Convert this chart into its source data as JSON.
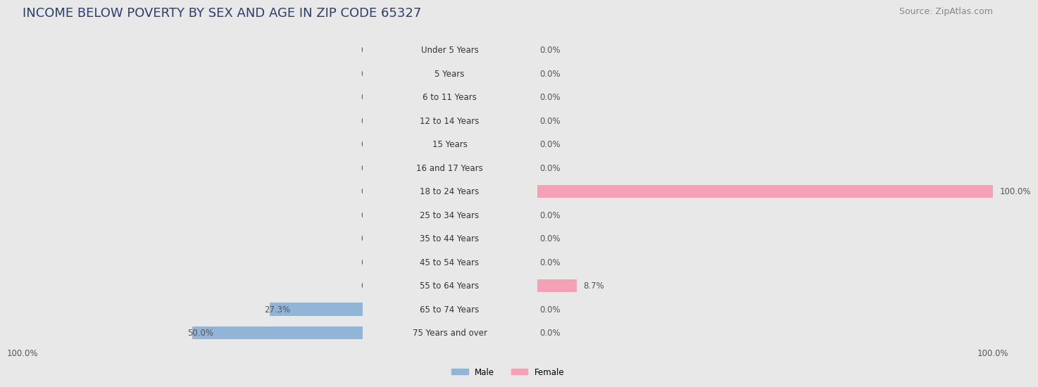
{
  "title": "INCOME BELOW POVERTY BY SEX AND AGE IN ZIP CODE 65327",
  "source": "Source: ZipAtlas.com",
  "categories": [
    "Under 5 Years",
    "5 Years",
    "6 to 11 Years",
    "12 to 14 Years",
    "15 Years",
    "16 and 17 Years",
    "18 to 24 Years",
    "25 to 34 Years",
    "35 to 44 Years",
    "45 to 54 Years",
    "55 to 64 Years",
    "65 to 74 Years",
    "75 Years and over"
  ],
  "male_values": [
    0.0,
    0.0,
    0.0,
    0.0,
    0.0,
    0.0,
    0.0,
    0.0,
    0.0,
    0.0,
    0.0,
    27.3,
    50.0
  ],
  "female_values": [
    0.0,
    0.0,
    0.0,
    0.0,
    0.0,
    0.0,
    100.0,
    0.0,
    0.0,
    0.0,
    8.7,
    0.0,
    0.0
  ],
  "male_color": "#92b4d7",
  "female_color": "#f4a0b5",
  "male_label": "Male",
  "female_label": "Female",
  "max_val": 100.0,
  "background_color": "#e8e8e8",
  "row_even_color": "#f5f5f5",
  "row_odd_color": "#e8e8e8",
  "title_fontsize": 13,
  "source_fontsize": 9,
  "label_fontsize": 8.5,
  "cat_fontsize": 8.5,
  "bar_height": 0.55,
  "title_color": "#2c3e6b",
  "source_color": "#888888",
  "value_color": "#555555"
}
